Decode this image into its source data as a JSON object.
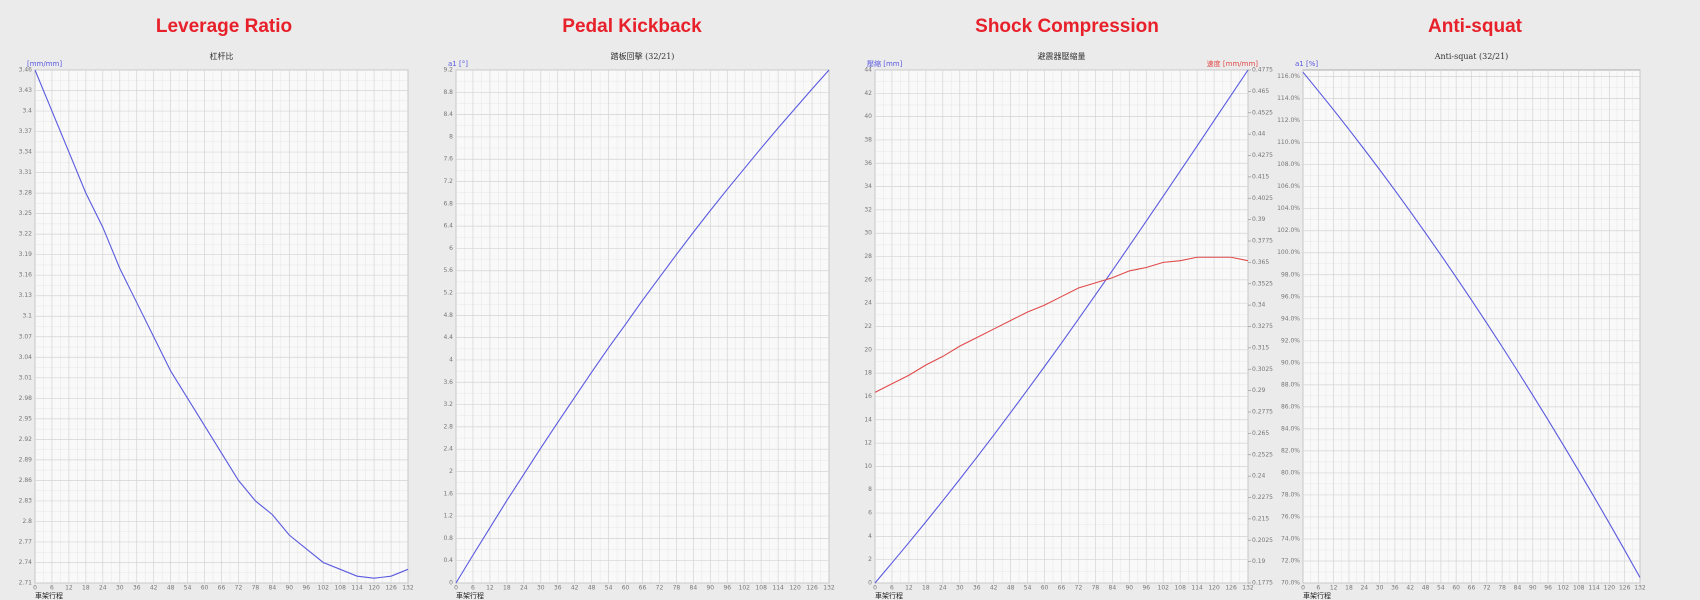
{
  "chart_data": {
    "type": "multi",
    "charts": [
      {
        "type": "line",
        "title": "Leverage Ratio",
        "subtitle": "杠杆比",
        "y_label": "[mm/mm]",
        "x_label": "車架行程",
        "x": [
          0,
          6,
          12,
          18,
          24,
          30,
          36,
          42,
          48,
          54,
          60,
          66,
          72,
          78,
          84,
          90,
          96,
          102,
          108,
          114,
          120,
          126,
          132
        ],
        "series": [
          {
            "color": "#5a5ae0",
            "values": [
              3.46,
              3.4,
              3.34,
              3.28,
              3.23,
              3.17,
              3.12,
              3.07,
              3.02,
              2.98,
              2.94,
              2.9,
              2.86,
              2.83,
              2.81,
              2.78,
              2.76,
              2.74,
              2.73,
              2.72,
              2.717,
              2.72,
              2.73
            ]
          }
        ],
        "xlim": [
          0,
          132
        ],
        "xticks": [
          0,
          6,
          12,
          18,
          24,
          30,
          36,
          42,
          48,
          54,
          60,
          66,
          72,
          78,
          84,
          90,
          96,
          102,
          108,
          114,
          120,
          126,
          132
        ],
        "ylim": [
          2.71,
          3.46
        ],
        "yticks": [
          2.71,
          2.74,
          2.77,
          2.8,
          2.83,
          2.86,
          2.89,
          2.92,
          2.95,
          2.98,
          3.01,
          3.04,
          3.07,
          3.1,
          3.13,
          3.16,
          3.19,
          3.22,
          3.25,
          3.28,
          3.31,
          3.34,
          3.37,
          3.4,
          3.43,
          3.46
        ],
        "grid": true
      },
      {
        "type": "line",
        "title": "Pedal Kickback",
        "subtitle": "踏板回擊 (32/21)",
        "y_label": "a1 [°]",
        "x_label": "車架行程",
        "x": [
          0,
          6,
          12,
          18,
          24,
          30,
          36,
          42,
          48,
          54,
          60,
          66,
          72,
          78,
          84,
          90,
          96,
          102,
          108,
          114,
          120,
          126,
          132
        ],
        "series": [
          {
            "color": "#5a5ae0",
            "values": [
              0,
              0.5,
              0.99,
              1.48,
              1.95,
              2.42,
              2.88,
              3.33,
              3.78,
              4.22,
              4.64,
              5.07,
              5.48,
              5.89,
              6.29,
              6.68,
              7.06,
              7.43,
              7.8,
              8.16,
              8.51,
              8.86,
              9.2
            ]
          }
        ],
        "xlim": [
          0,
          132
        ],
        "xticks": [
          0,
          6,
          12,
          18,
          24,
          30,
          36,
          42,
          48,
          54,
          60,
          66,
          72,
          78,
          84,
          90,
          96,
          102,
          108,
          114,
          120,
          126,
          132
        ],
        "ylim": [
          0,
          9.2
        ],
        "yticks": [
          0,
          0.4,
          0.8,
          1.2,
          1.6,
          2,
          2.4,
          2.8,
          3.2,
          3.6,
          4,
          4.4,
          4.8,
          5.2,
          5.6,
          6,
          6.4,
          6.8,
          7.2,
          7.6,
          8,
          8.4,
          8.8,
          9.2
        ],
        "grid": true
      },
      {
        "type": "line",
        "title": "Shock Compression",
        "subtitle": "避震器壓縮量",
        "y_label": "壓縮 [mm]",
        "y2_label": "速度 [mm/mm]",
        "x_label": "車架行程",
        "x": [
          0,
          6,
          12,
          18,
          24,
          30,
          36,
          42,
          48,
          54,
          60,
          66,
          72,
          78,
          84,
          90,
          96,
          102,
          108,
          114,
          120,
          126,
          132
        ],
        "series": [
          {
            "color": "#5a5ae0",
            "values": [
              0,
              1.72,
              3.47,
              5.24,
              7.06,
              8.9,
              10.77,
              12.68,
              14.62,
              16.58,
              18.57,
              20.58,
              22.64,
              24.71,
              26.8,
              28.91,
              31.04,
              33.18,
              35.33,
              37.49,
              39.66,
              41.83,
              44.0
            ]
          },
          {
            "color": "#e04a4a",
            "axis": "y2",
            "values": [
              0.289,
              0.294,
              0.299,
              0.305,
              0.31,
              0.316,
              0.321,
              0.326,
              0.331,
              0.336,
              0.34,
              0.345,
              0.35,
              0.353,
              0.356,
              0.36,
              0.362,
              0.365,
              0.366,
              0.368,
              0.368,
              0.368,
              0.366
            ]
          }
        ],
        "xlim": [
          0,
          132
        ],
        "xticks": [
          0,
          6,
          12,
          18,
          24,
          30,
          36,
          42,
          48,
          54,
          60,
          66,
          72,
          78,
          84,
          90,
          96,
          102,
          108,
          114,
          120,
          126,
          132
        ],
        "ylim": [
          0,
          44
        ],
        "yticks": [
          0,
          2,
          4,
          6,
          8,
          10,
          12,
          14,
          16,
          18,
          20,
          22,
          24,
          26,
          28,
          30,
          32,
          34,
          36,
          38,
          40,
          42,
          44
        ],
        "y2lim": [
          0.1775,
          0.4775
        ],
        "y2ticks": [
          0.1775,
          0.19,
          0.2025,
          0.215,
          0.2275,
          0.24,
          0.2525,
          0.265,
          0.2775,
          0.29,
          0.3025,
          0.315,
          0.3275,
          0.34,
          0.3525,
          0.365,
          0.3775,
          0.39,
          0.4025,
          0.415,
          0.4275,
          0.44,
          0.4525,
          0.465,
          0.4775
        ],
        "grid": true
      },
      {
        "type": "line",
        "title": "Anti-squat",
        "subtitle": "Anti-squat (32/21)",
        "y_label": "a1 [%]",
        "x_label": "車架行程",
        "x": [
          0,
          6,
          12,
          18,
          24,
          30,
          36,
          42,
          48,
          54,
          60,
          66,
          72,
          78,
          84,
          90,
          96,
          102,
          108,
          114,
          120,
          126,
          132
        ],
        "series": [
          {
            "color": "#5a5ae0",
            "values": [
              116.4,
              114.7,
              112.97,
              111.2,
              109.39,
              107.55,
              105.67,
              103.75,
              101.79,
              99.8,
              97.77,
              95.7,
              93.6,
              91.46,
              89.28,
              87.06,
              84.81,
              82.52,
              80.19,
              77.83,
              75.42,
              72.98,
              70.5
            ]
          }
        ],
        "xlim": [
          0,
          132
        ],
        "xticks": [
          0,
          6,
          12,
          18,
          24,
          30,
          36,
          42,
          48,
          54,
          60,
          66,
          72,
          78,
          84,
          90,
          96,
          102,
          108,
          114,
          120,
          126,
          132
        ],
        "ylim": [
          70,
          116.6
        ],
        "yticks": [
          {
            "value": 70,
            "label": "70.0%"
          },
          {
            "value": 72,
            "label": "72.0%"
          },
          {
            "value": 74,
            "label": "74.0%"
          },
          {
            "value": 76,
            "label": "76.0%"
          },
          {
            "value": 78,
            "label": "78.0%"
          },
          {
            "value": 80,
            "label": "80.0%"
          },
          {
            "value": 82,
            "label": "82.0%"
          },
          {
            "value": 84,
            "label": "84.0%"
          },
          {
            "value": 86,
            "label": "86.0%"
          },
          {
            "value": 88,
            "label": "88.0%"
          },
          {
            "value": 90,
            "label": "90.0%"
          },
          {
            "value": 92,
            "label": "92.0%"
          },
          {
            "value": 94,
            "label": "94.0%"
          },
          {
            "value": 96,
            "label": "96.0%"
          },
          {
            "value": 98,
            "label": "98.0%"
          },
          {
            "value": 100,
            "label": "100.0%"
          },
          {
            "value": 102,
            "label": "102.0%"
          },
          {
            "value": 104,
            "label": "104.0%"
          },
          {
            "value": 106,
            "label": "106.0%"
          },
          {
            "value": 108,
            "label": "108.0%"
          },
          {
            "value": 110,
            "label": "110.0%"
          },
          {
            "value": 112,
            "label": "112.0%"
          },
          {
            "value": 114,
            "label": "114.0%"
          },
          {
            "value": 116,
            "label": "116.0%"
          }
        ],
        "grid": true
      }
    ]
  }
}
